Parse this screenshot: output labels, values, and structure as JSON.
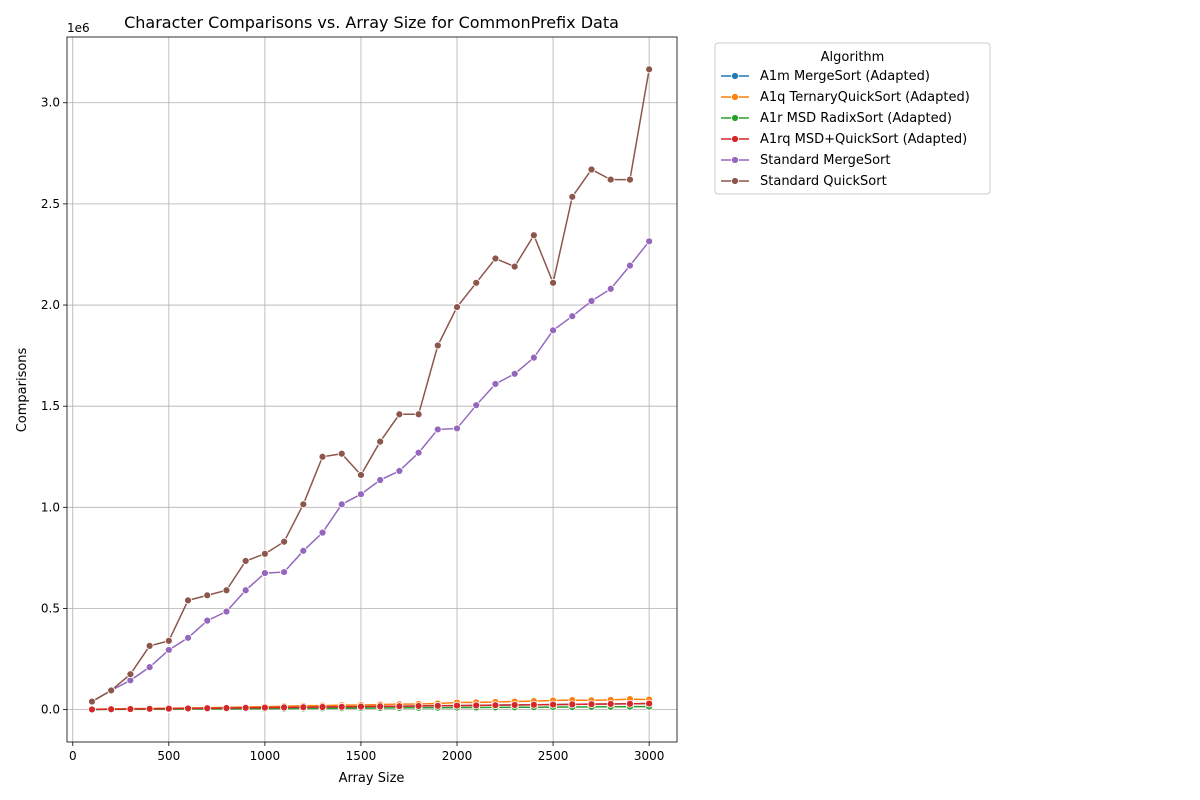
{
  "chart_data": {
    "type": "line",
    "title": "Character Comparisons vs. Array Size for CommonPrefix Data",
    "xlabel": "Array Size",
    "ylabel": "Comparisons",
    "y_offset_label": "1e6",
    "xlim": [
      -30,
      3145
    ],
    "ylim": [
      -160000,
      3325000
    ],
    "x_ticks": [
      0,
      500,
      1000,
      1500,
      2000,
      2500,
      3000
    ],
    "x_tick_labels": [
      "0",
      "500",
      "1000",
      "1500",
      "2000",
      "2500",
      "3000"
    ],
    "y_ticks": [
      0,
      500000,
      1000000,
      1500000,
      2000000,
      2500000,
      3000000
    ],
    "y_tick_labels": [
      "0.0",
      "0.5",
      "1.0",
      "1.5",
      "2.0",
      "2.5",
      "3.0"
    ],
    "grid": true,
    "legend": {
      "title": "Algorithm",
      "placement": "outside-upper-right"
    },
    "x": [
      100,
      200,
      300,
      400,
      500,
      600,
      700,
      800,
      900,
      1000,
      1100,
      1200,
      1300,
      1400,
      1500,
      1600,
      1700,
      1800,
      1900,
      2000,
      2100,
      2200,
      2300,
      2400,
      2500,
      2600,
      2700,
      2800,
      2900,
      3000
    ],
    "series": [
      {
        "name": "A1m MergeSort (Adapted)",
        "color": "#1f77b4",
        "values": [
          1000,
          2000,
          3000,
          4000,
          5000,
          6000,
          7000,
          8000,
          9000,
          10000,
          11000,
          12000,
          13000,
          14000,
          15000,
          16000,
          17000,
          18000,
          19000,
          20000,
          21000,
          22000,
          23000,
          24000,
          25000,
          26000,
          27000,
          28000,
          29000,
          30000
        ]
      },
      {
        "name": "A1q TernaryQuickSort (Adapted)",
        "color": "#ff7f0e",
        "values": [
          1500,
          4000,
          5000,
          6000,
          7000,
          8000,
          9000,
          11000,
          13000,
          15000,
          17000,
          19000,
          20000,
          22000,
          23000,
          25000,
          27000,
          28000,
          30000,
          35000,
          36000,
          38000,
          40000,
          42000,
          45000,
          47000,
          46000,
          48000,
          52000,
          50000
        ]
      },
      {
        "name": "A1r MSD RadixSort (Adapted)",
        "color": "#2ca02c",
        "values": [
          500,
          1000,
          1500,
          2000,
          2500,
          3000,
          3500,
          4000,
          4500,
          5000,
          5500,
          6000,
          6500,
          7000,
          7500,
          8000,
          8500,
          9000,
          9500,
          10000,
          10500,
          11000,
          11500,
          12000,
          12500,
          13000,
          13500,
          14000,
          14500,
          15000
        ]
      },
      {
        "name": "A1rq MSD+QuickSort (Adapted)",
        "color": "#d62728",
        "values": [
          1000,
          2000,
          3000,
          4000,
          5000,
          6000,
          7000,
          8000,
          9000,
          10000,
          11000,
          12000,
          13000,
          14000,
          15000,
          16000,
          17000,
          18000,
          19000,
          20000,
          21000,
          22000,
          23000,
          24000,
          25000,
          26000,
          27000,
          28000,
          29000,
          30000
        ]
      },
      {
        "name": "Standard MergeSort",
        "color": "#9467bd",
        "values": [
          40000,
          95000,
          145000,
          210000,
          295000,
          355000,
          440000,
          485000,
          590000,
          675000,
          680000,
          785000,
          875000,
          1015000,
          1065000,
          1135000,
          1180000,
          1270000,
          1385000,
          1390000,
          1505000,
          1610000,
          1660000,
          1740000,
          1875000,
          1945000,
          2020000,
          2080000,
          2195000,
          2315000
        ]
      },
      {
        "name": "Standard QuickSort",
        "color": "#8c564b",
        "values": [
          40000,
          95000,
          175000,
          315000,
          340000,
          540000,
          565000,
          590000,
          735000,
          770000,
          830000,
          1015000,
          1250000,
          1265000,
          1160000,
          1325000,
          1460000,
          1460000,
          1800000,
          1990000,
          2110000,
          2230000,
          2190000,
          2345000,
          2110000,
          2535000,
          2670000,
          2620000,
          2620000,
          3165000
        ]
      }
    ]
  }
}
